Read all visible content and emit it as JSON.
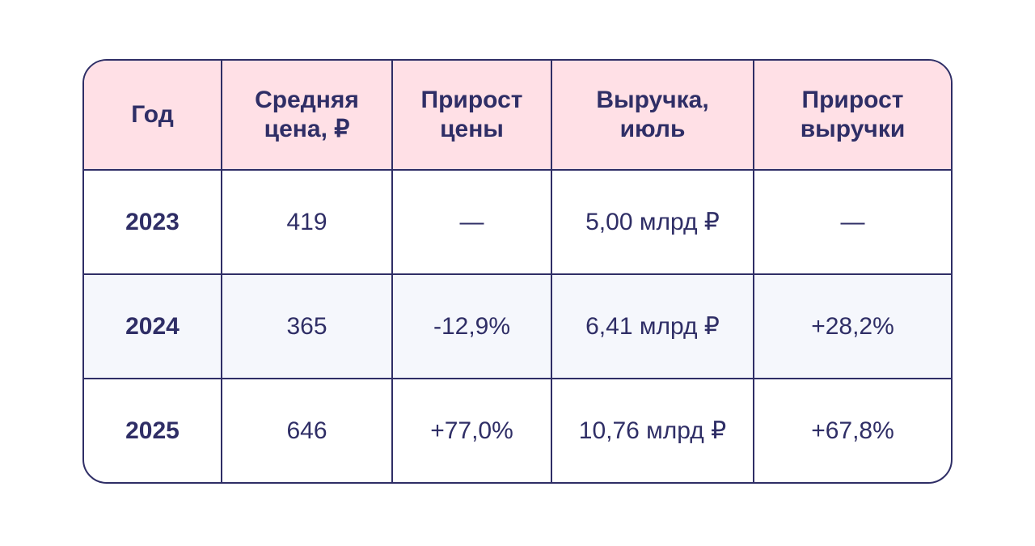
{
  "colors": {
    "border": "#2f2e66",
    "text": "#2f2e66",
    "header_bg": "#ffe0e6",
    "alt_row_bg": "#f5f7fc"
  },
  "chart_data": {
    "type": "table",
    "columns": [
      "Год",
      "Средняя\nцена,  ₽",
      "Прирост\nцены",
      "Выручка,\nиюль",
      "Прирост\nвыручки"
    ],
    "rows": [
      [
        "2023",
        "419",
        "—",
        "5,00 млрд ₽",
        "—"
      ],
      [
        "2024",
        "365",
        "-12,9%",
        "6,41 млрд ₽",
        "+28,2%"
      ],
      [
        "2025",
        "646",
        "+77,0%",
        "10,76 млрд ₽",
        "+67,8%"
      ]
    ]
  }
}
